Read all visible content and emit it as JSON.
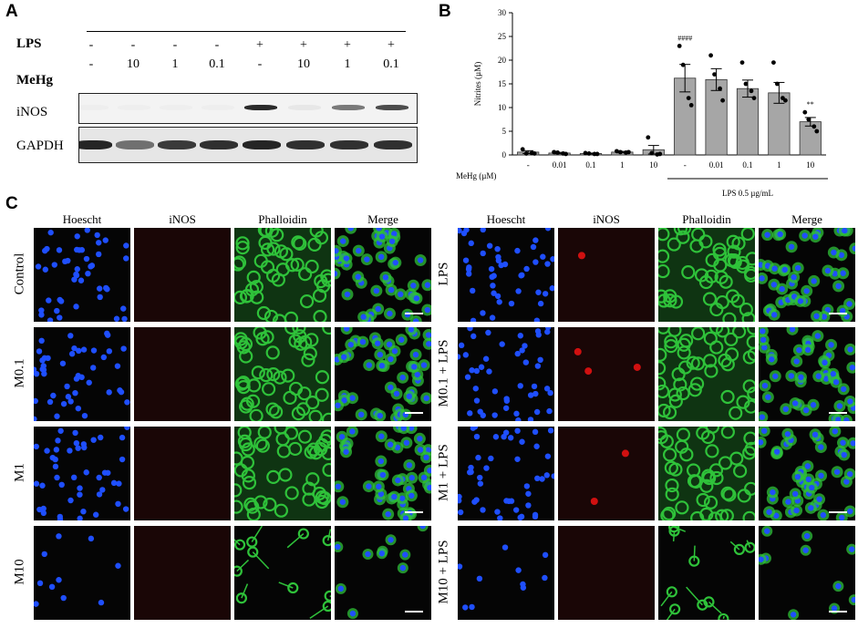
{
  "panels": {
    "a": "A",
    "b": "B",
    "c": "C"
  },
  "western": {
    "row_labels": {
      "lps": "LPS",
      "mehg": "MeHg",
      "inos": "iNOS",
      "gapdh": "GAPDH"
    },
    "lps_values": [
      "-",
      "-",
      "-",
      "-",
      "+",
      "+",
      "+",
      "+"
    ],
    "mehg_values": [
      "-",
      "10",
      "1",
      "0.1",
      "-",
      "10",
      "1",
      "0.1"
    ],
    "inos_band_intensity": [
      0.02,
      0.02,
      0.02,
      0.02,
      0.9,
      0.05,
      0.55,
      0.75
    ],
    "gapdh_band_intensity": [
      0.9,
      0.55,
      0.8,
      0.85,
      0.9,
      0.85,
      0.85,
      0.85
    ]
  },
  "chart_data": {
    "type": "bar",
    "ylabel": "Nitrites (µM)",
    "xlabel": "MeHg (µM)",
    "ylim": [
      0,
      30
    ],
    "yticks": [
      0,
      5,
      10,
      15,
      20,
      25,
      30
    ],
    "categories": [
      "-",
      "0.01",
      "0.1",
      "1",
      "10",
      "-",
      "0.01",
      "0.1",
      "1",
      "10"
    ],
    "values": [
      0.6,
      0.4,
      0.3,
      0.6,
      1.1,
      16.2,
      15.9,
      14.0,
      13.1,
      7.0
    ],
    "errors": [
      0.3,
      0.15,
      0.1,
      0.15,
      0.9,
      2.9,
      2.3,
      1.8,
      2.2,
      0.9
    ],
    "points": [
      [
        1.2,
        0.3,
        0.4,
        0.3
      ],
      [
        0.6,
        0.5,
        0.3,
        0.2
      ],
      [
        0.4,
        0.3,
        0.2,
        0.2
      ],
      [
        0.8,
        0.6,
        0.5,
        0.6
      ],
      [
        3.7,
        0.4,
        0.1,
        0.2
      ],
      [
        23.0,
        19.0,
        12.0,
        10.5
      ],
      [
        21.0,
        17.0,
        14.0,
        11.5
      ],
      [
        19.5,
        15.0,
        13.5,
        12.0
      ],
      [
        19.5,
        15.0,
        12.0,
        11.5
      ],
      [
        9.0,
        7.5,
        6.0,
        5.0
      ]
    ],
    "annotations": [
      {
        "category_index": 5,
        "text": "####"
      },
      {
        "category_index": 9,
        "text": "**"
      }
    ],
    "group_label": "LPS 0.5 µg/mL",
    "bar_color": "#a6a6a6"
  },
  "microscopy": {
    "column_headers": [
      "Hoescht",
      "iNOS",
      "Phalloidin",
      "Merge"
    ],
    "left_rows": [
      "Control",
      "M0.1",
      "M1",
      "M10"
    ],
    "right_rows": [
      "LPS",
      "M0.1 + LPS",
      "M1 + LPS",
      "M10 + LPS"
    ],
    "colors": {
      "hoechst": "#1f4fff",
      "inos": "#d01010",
      "phalloidin": "#2fc23a"
    }
  }
}
